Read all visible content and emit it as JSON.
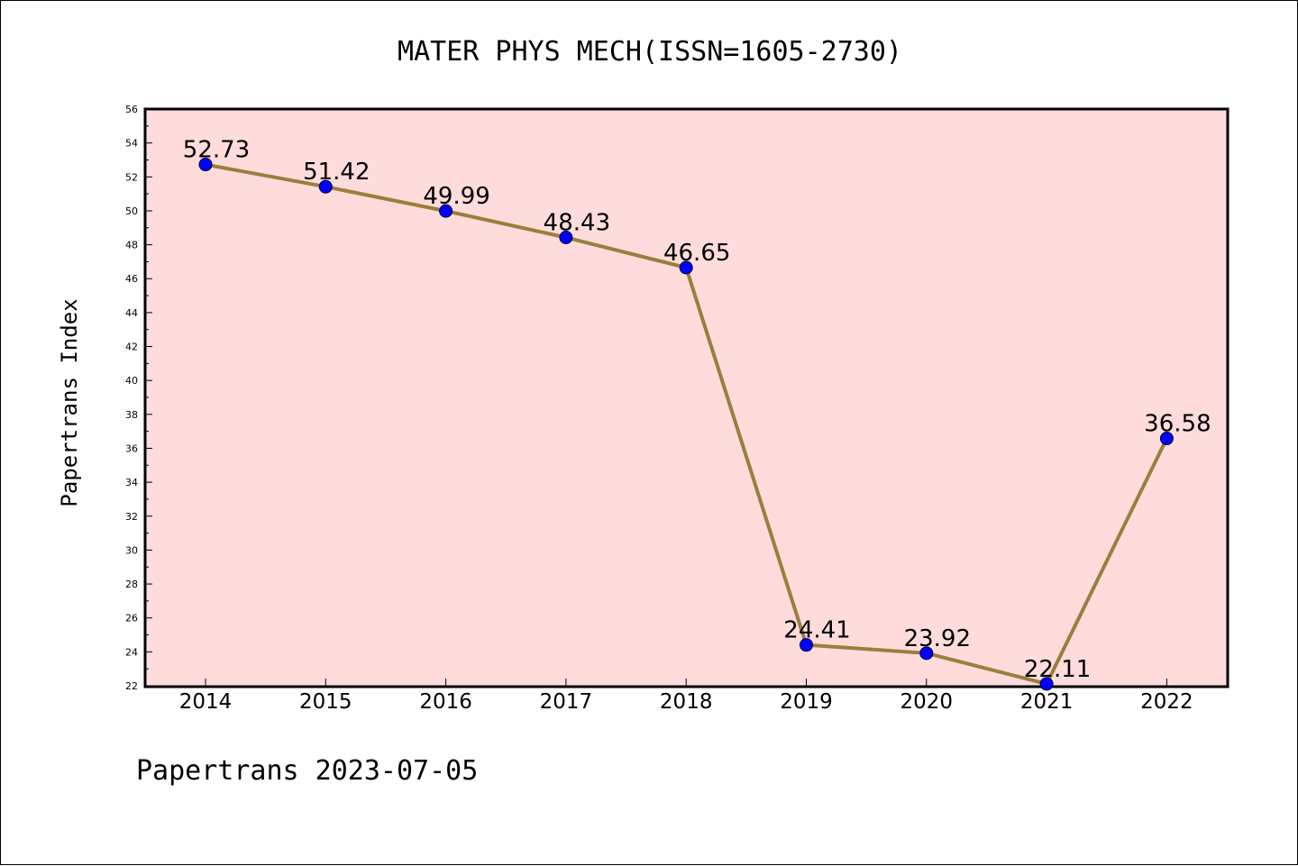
{
  "chart_data": {
    "type": "line",
    "title": "MATER PHYS MECH(ISSN=1605-2730)",
    "ylabel": "Papertrans Index",
    "xlabel": "",
    "footer": "Papertrans 2023-07-05",
    "categories": [
      "2014",
      "2015",
      "2016",
      "2017",
      "2018",
      "2019",
      "2020",
      "2021",
      "2022"
    ],
    "values": [
      52.73,
      51.42,
      49.99,
      48.43,
      46.65,
      24.41,
      23.92,
      22.11,
      36.58
    ],
    "data_labels": [
      "52.73",
      "51.42",
      "49.99",
      "48.43",
      "46.65",
      "24.41",
      "23.92",
      "22.11",
      "36.58"
    ],
    "ylim": [
      22,
      56
    ],
    "yticks": [
      "22",
      "24",
      "26",
      "28",
      "30",
      "32",
      "34",
      "36",
      "38",
      "40",
      "42",
      "44",
      "46",
      "48",
      "50",
      "52",
      "54",
      "56"
    ],
    "grid": false,
    "colors": {
      "plot_background": "#ffdcdc",
      "line": "#9b7e3c",
      "marker": "#0000ff",
      "marker_edge": "#000033"
    }
  }
}
